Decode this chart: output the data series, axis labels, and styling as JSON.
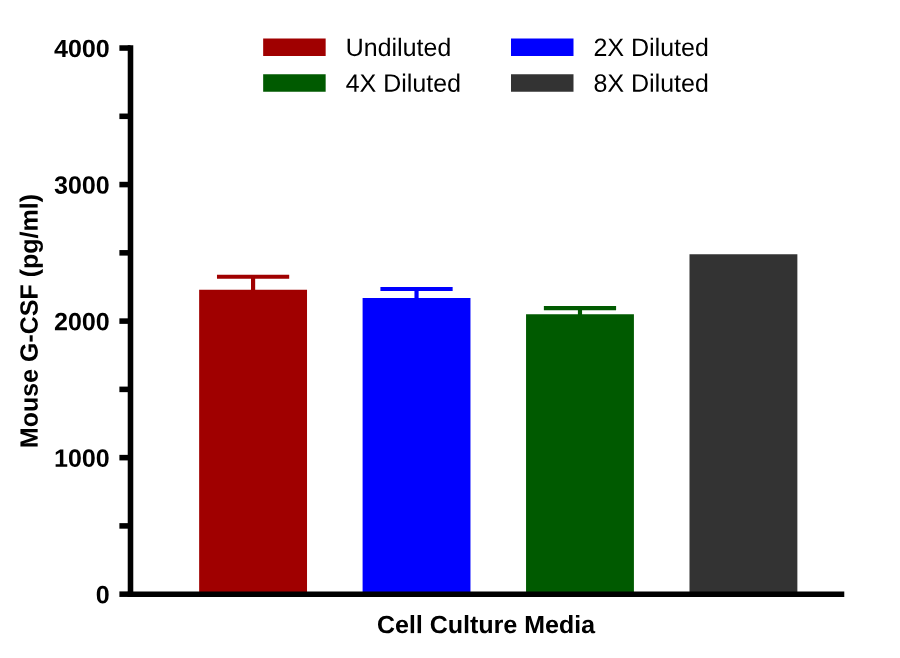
{
  "chart_data": {
    "type": "bar",
    "xlabel": "Cell Culture Media",
    "ylabel": "Mouse G-CSF (pg/ml)",
    "categories": [
      null,
      null,
      null,
      null
    ],
    "series": [
      {
        "name": "Undiluted",
        "color": "#a00000",
        "values": [
          2230,
          null,
          null,
          null
        ],
        "errors": [
          95,
          null,
          null,
          null
        ]
      },
      {
        "name": "2X Diluted",
        "color": "#0000ff",
        "values": [
          null,
          2170,
          null,
          null
        ],
        "errors": [
          null,
          65,
          null,
          null
        ]
      },
      {
        "name": "4X Diluted",
        "color": "#005a00",
        "values": [
          null,
          null,
          2050,
          null
        ],
        "errors": [
          null,
          null,
          45,
          null
        ]
      },
      {
        "name": "8X Diluted",
        "color": "#333333",
        "values": [
          null,
          null,
          null,
          2490
        ]
      }
    ],
    "ylim": [
      0,
      4000
    ],
    "yticks": [
      0,
      {
        "value": 500,
        "label": null
      },
      1000,
      {
        "value": 1500,
        "label": null
      },
      2000,
      {
        "value": 2500,
        "label": null
      },
      3000,
      {
        "value": 3500,
        "label": null
      },
      4000
    ],
    "grid": false,
    "legend": "top"
  }
}
